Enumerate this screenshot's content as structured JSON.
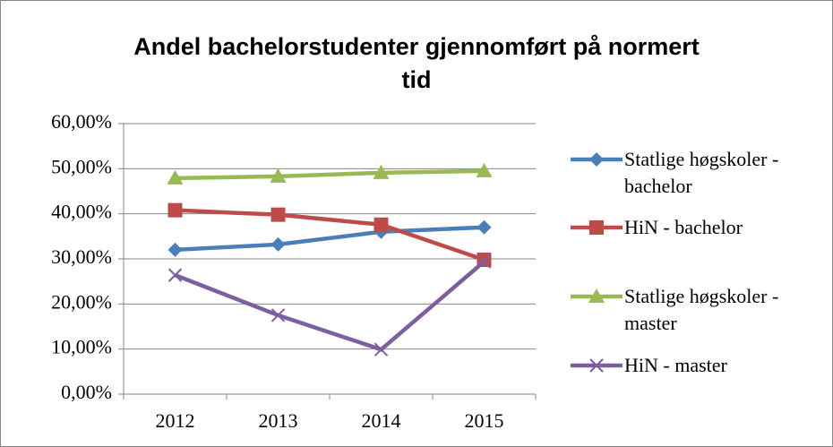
{
  "chart_data": {
    "type": "line",
    "title": "Andel bachelorstudenter gjennomført på normert tid",
    "categories": [
      "2012",
      "2013",
      "2014",
      "2015"
    ],
    "series": [
      {
        "name": "Statlige høgskoler - bachelor",
        "color": "#4a7ebb",
        "marker": "diamond",
        "values": [
          32.0,
          33.2,
          36.0,
          37.0
        ]
      },
      {
        "name": "HiN - bachelor",
        "color": "#be4b48",
        "marker": "square",
        "values": [
          40.8,
          39.8,
          37.6,
          29.8
        ]
      },
      {
        "name": "Statlige høgskoler - master",
        "color": "#98b954",
        "marker": "triangle",
        "values": [
          47.9,
          48.3,
          49.1,
          49.5
        ]
      },
      {
        "name": "HiN - master",
        "color": "#7d5fa0",
        "marker": "x",
        "values": [
          26.4,
          17.5,
          9.9,
          29.4
        ]
      }
    ],
    "ylim": [
      0,
      60
    ],
    "yticks": [
      {
        "value": 0,
        "label": "0,00%"
      },
      {
        "value": 10,
        "label": "10,00%"
      },
      {
        "value": 20,
        "label": "20,00%"
      },
      {
        "value": 30,
        "label": "30,00%"
      },
      {
        "value": 40,
        "label": "40,00%"
      },
      {
        "value": 50,
        "label": "50,00%"
      },
      {
        "value": 60,
        "label": "60,00%"
      }
    ],
    "grid": true,
    "legend": "right"
  }
}
